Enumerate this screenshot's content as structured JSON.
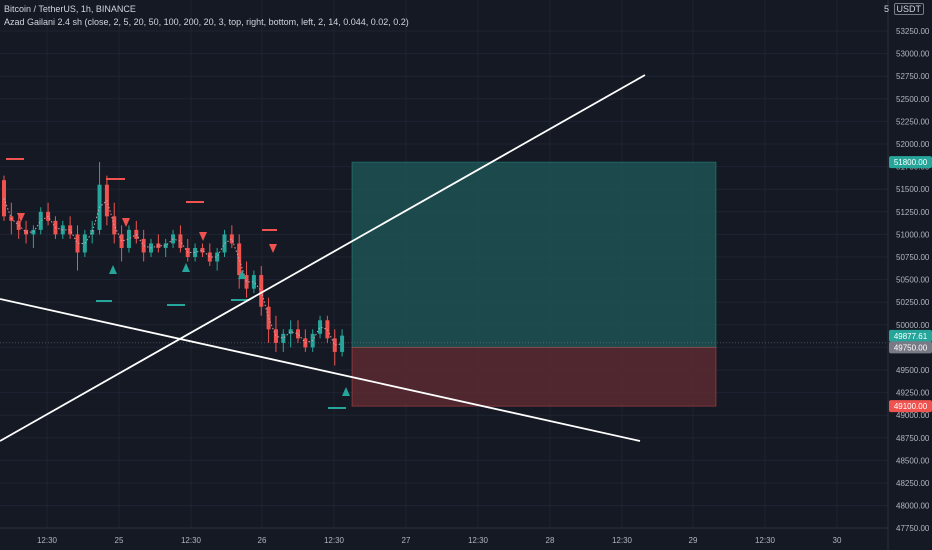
{
  "header": {
    "symbol_line": "Bitcoin / TetherUS, 1h, BINANCE",
    "indicator_line": "Azad Gailani 2.4 sh (close, 2, 5, 20, 50, 100, 200, 20, 3, top, right, bottom, left, 2, 14, 0.044, 0.02, 0.2)",
    "scale_count": "5",
    "currency_label": "USDT"
  },
  "colors": {
    "background": "#151924",
    "grid": "#1f2432",
    "axis_text": "#b2b5be",
    "bull": "#26a69a",
    "bear": "#ef5350",
    "profit_zone": "#1f5a58",
    "loss_zone": "#5a2a31",
    "trendline": "#ffffff",
    "ma_line": "#c9a0b0"
  },
  "chart_data": {
    "type": "candlestick",
    "y_ticks": [
      53250,
      53000,
      52750,
      52500,
      52250,
      52000,
      51750,
      51500,
      51250,
      51000,
      50750,
      50500,
      50250,
      50000,
      49750,
      49500,
      49250,
      49000,
      48750,
      48500,
      48250,
      48000,
      47750
    ],
    "ylim": [
      47700,
      53450
    ],
    "x_ticks": [
      "12:30",
      "25",
      "12:30",
      "26",
      "12:30",
      "27",
      "12:30",
      "28",
      "12:30",
      "29",
      "12:30",
      "30"
    ],
    "price_labels": [
      {
        "value": "51800.00",
        "color": "#26a69a"
      },
      {
        "value": "49877.61",
        "color": "#26a69a"
      },
      {
        "value": "49750.00",
        "color": "#787b86"
      },
      {
        "value": "49100.00",
        "color": "#ef5350"
      }
    ],
    "position": {
      "target": 51800,
      "entry": 49750,
      "stop": 49100
    },
    "candles": [
      [
        51600,
        51650,
        51150,
        51200
      ],
      [
        51200,
        51350,
        51000,
        51150
      ],
      [
        51150,
        51200,
        50950,
        51050
      ],
      [
        51050,
        51150,
        50900,
        51000
      ],
      [
        51000,
        51100,
        50850,
        51050
      ],
      [
        51050,
        51300,
        51000,
        51250
      ],
      [
        51250,
        51350,
        51100,
        51150
      ],
      [
        51150,
        51200,
        50950,
        51000
      ],
      [
        51000,
        51150,
        50950,
        51100
      ],
      [
        51100,
        51200,
        50950,
        51000
      ],
      [
        51000,
        51100,
        50600,
        50800
      ],
      [
        50800,
        51050,
        50750,
        51000
      ],
      [
        51000,
        51150,
        50900,
        51050
      ],
      [
        51050,
        51800,
        51000,
        51550
      ],
      [
        51550,
        51650,
        51100,
        51200
      ],
      [
        51200,
        51350,
        50900,
        51000
      ],
      [
        51000,
        51100,
        50700,
        50850
      ],
      [
        50850,
        51100,
        50800,
        51050
      ],
      [
        51050,
        51150,
        50900,
        50950
      ],
      [
        50950,
        51050,
        50700,
        50800
      ],
      [
        50800,
        50950,
        50750,
        50900
      ],
      [
        50900,
        51000,
        50800,
        50850
      ],
      [
        50850,
        50950,
        50750,
        50900
      ],
      [
        50900,
        51050,
        50850,
        51000
      ],
      [
        51000,
        51100,
        50800,
        50850
      ],
      [
        50850,
        50950,
        50700,
        50750
      ],
      [
        50750,
        50900,
        50700,
        50850
      ],
      [
        50850,
        50900,
        50750,
        50800
      ],
      [
        50800,
        50900,
        50650,
        50700
      ],
      [
        50700,
        50850,
        50600,
        50800
      ],
      [
        50800,
        51050,
        50750,
        51000
      ],
      [
        51000,
        51100,
        50850,
        50900
      ],
      [
        50900,
        51000,
        50400,
        50550
      ],
      [
        50550,
        50700,
        50300,
        50400
      ],
      [
        50400,
        50600,
        50350,
        50550
      ],
      [
        50550,
        50650,
        50100,
        50200
      ],
      [
        50200,
        50300,
        49800,
        49950
      ],
      [
        49950,
        50100,
        49700,
        49800
      ],
      [
        49800,
        49950,
        49700,
        49900
      ],
      [
        49900,
        50050,
        49750,
        49950
      ],
      [
        49950,
        50050,
        49800,
        49850
      ],
      [
        49850,
        49950,
        49700,
        49750
      ],
      [
        49750,
        49950,
        49700,
        49900
      ],
      [
        49900,
        50100,
        49850,
        50050
      ],
      [
        50050,
        50100,
        49800,
        49850
      ],
      [
        49850,
        49950,
        49550,
        49700
      ],
      [
        49700,
        49950,
        49650,
        49880
      ]
    ]
  }
}
